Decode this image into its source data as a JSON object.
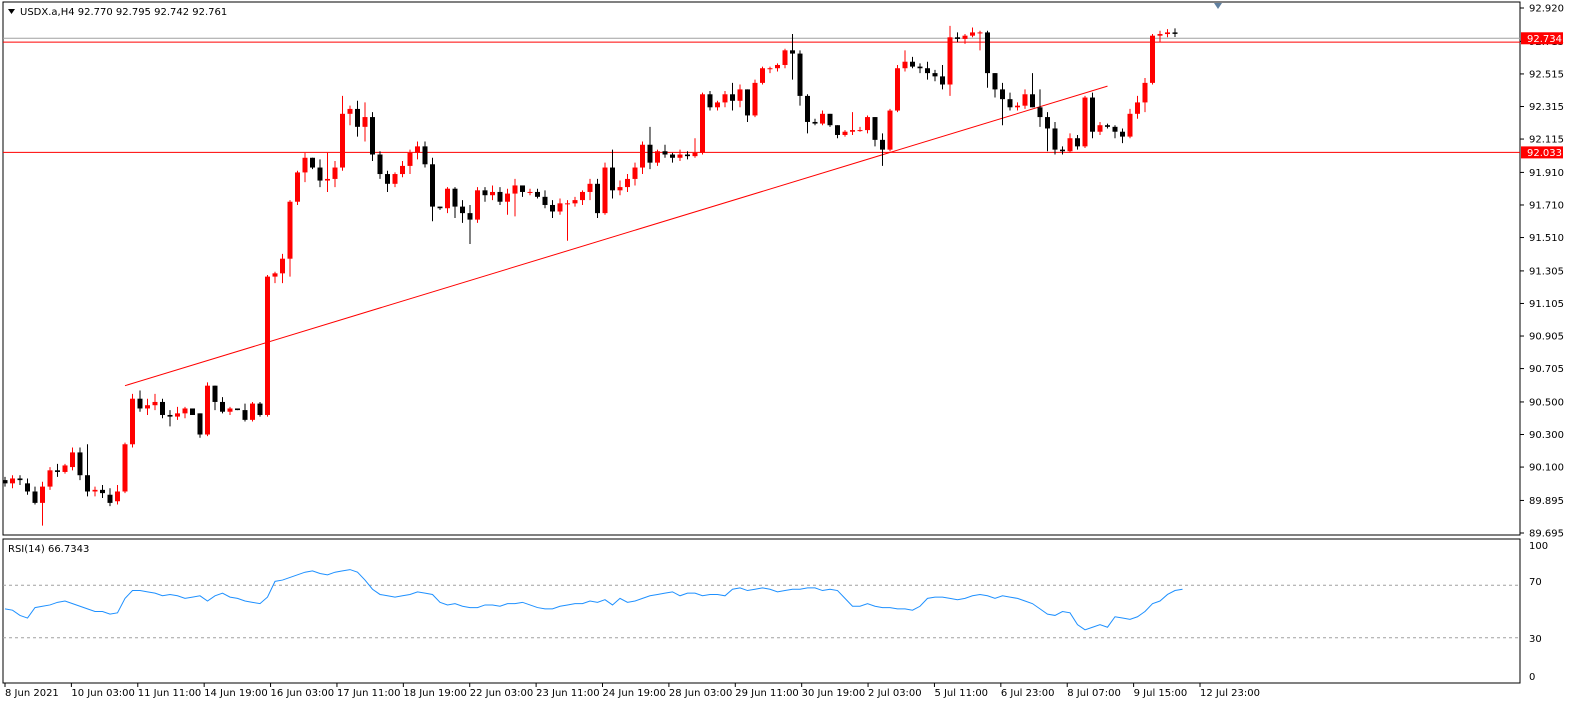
{
  "colors": {
    "background": "#ffffff",
    "frame": "#000000",
    "bull_candle": "#ff0000",
    "bear_candle": "#000000",
    "level_line": "#ff0000",
    "rsi_line": "#1e90ff",
    "rsi_levels": "#a0a0a0",
    "price_tag_bg": "#ff0000",
    "price_tag_text": "#ffffff"
  },
  "icons": {
    "menu": "triangle-down-icon",
    "marker": "triangle-down-icon"
  },
  "header": {
    "symbol_line": "USDX.a,H4  92.770 92.795 92.742 92.761"
  },
  "price_tags": {
    "current": "92.734",
    "resistance": "92.033",
    "current_value": 92.734,
    "resistance_value": 92.033
  },
  "rsi_panel": {
    "title": "RSI(14) 66.7343",
    "max_label": "100",
    "min_label": "0",
    "level_high_label": "70",
    "level_low_label": "30",
    "level_high": 70,
    "level_low": 30,
    "values": [
      52,
      51,
      47,
      45,
      53,
      54,
      55,
      57,
      58,
      56,
      54,
      52,
      50,
      50,
      48,
      49,
      60,
      66,
      66,
      65,
      64,
      62,
      63,
      62,
      60,
      61,
      62,
      58,
      62,
      64,
      61,
      60,
      58,
      57,
      56,
      61,
      73,
      74,
      76,
      78,
      80,
      81,
      79,
      78,
      80,
      81,
      82,
      80,
      74,
      67,
      63,
      62,
      61,
      62,
      63,
      65,
      64,
      63,
      57,
      55,
      56,
      54,
      53,
      53,
      55,
      55,
      54,
      56,
      56,
      57,
      55,
      53,
      52,
      52,
      54,
      55,
      56,
      56,
      58,
      57,
      59,
      55,
      60,
      57,
      58,
      60,
      62,
      63,
      64,
      65,
      62,
      64,
      64,
      62,
      63,
      63,
      62,
      67,
      68,
      66,
      67,
      68,
      67,
      65,
      66,
      67,
      67,
      68,
      68,
      66,
      67,
      66,
      60,
      54,
      54,
      56,
      54,
      53,
      53,
      52,
      52,
      51,
      54,
      60,
      61,
      61,
      60,
      59,
      60,
      62,
      63,
      62,
      60,
      62,
      61,
      60,
      58,
      56,
      52,
      48,
      47,
      50,
      49,
      40,
      36,
      38,
      40,
      38,
      46,
      45,
      44,
      46,
      50,
      56,
      58,
      63,
      66,
      67
    ]
  },
  "chart_data": {
    "type": "candlestick",
    "symbol": "USDX.a",
    "timeframe": "H4",
    "last_ohlc": {
      "open": 92.77,
      "high": 92.795,
      "low": 92.742,
      "close": 92.761
    },
    "ylim": [
      89.695,
      93.0
    ],
    "y_ticks": [
      "92.920",
      "92.715",
      "92.515",
      "92.315",
      "92.115",
      "91.910",
      "91.710",
      "91.510",
      "91.305",
      "91.105",
      "90.905",
      "90.705",
      "90.500",
      "90.300",
      "90.100",
      "89.895",
      "89.695"
    ],
    "x_ticks": [
      "8 Jun 2021",
      "10 Jun 03:00",
      "11 Jun 11:00",
      "14 Jun 19:00",
      "16 Jun 03:00",
      "17 Jun 11:00",
      "18 Jun 19:00",
      "22 Jun 03:00",
      "23 Jun 11:00",
      "24 Jun 19:00",
      "28 Jun 03:00",
      "29 Jun 11:00",
      "30 Jun 19:00",
      "2 Jul 03:00",
      "5 Jul 11:00",
      "6 Jul 23:00",
      "8 Jul 07:00",
      "9 Jul 15:00",
      "12 Jul 23:00"
    ],
    "candles": [
      [
        90.02,
        90.04,
        89.98,
        90.0
      ],
      [
        90.0,
        90.05,
        89.97,
        90.03
      ],
      [
        90.03,
        90.05,
        89.99,
        90.02
      ],
      [
        90.0,
        90.03,
        89.93,
        89.95
      ],
      [
        89.95,
        89.98,
        89.87,
        89.88
      ],
      [
        89.88,
        90.01,
        89.74,
        89.98
      ],
      [
        89.98,
        90.1,
        89.96,
        90.08
      ],
      [
        90.08,
        90.12,
        90.04,
        90.07
      ],
      [
        90.07,
        90.12,
        90.06,
        90.11
      ],
      [
        90.1,
        90.22,
        90.08,
        90.19
      ],
      [
        90.19,
        90.22,
        90.02,
        90.05
      ],
      [
        90.05,
        90.24,
        89.92,
        89.95
      ],
      [
        89.95,
        89.98,
        89.92,
        89.96
      ],
      [
        89.96,
        89.99,
        89.91,
        89.94
      ],
      [
        89.93,
        89.97,
        89.86,
        89.88
      ],
      [
        89.89,
        89.99,
        89.87,
        89.95
      ],
      [
        89.95,
        90.25,
        89.94,
        90.24
      ],
      [
        90.24,
        90.55,
        90.22,
        90.52
      ],
      [
        90.52,
        90.57,
        90.44,
        90.46
      ],
      [
        90.46,
        90.52,
        90.42,
        90.48
      ],
      [
        90.48,
        90.55,
        90.45,
        90.5
      ],
      [
        90.5,
        90.52,
        90.4,
        90.42
      ],
      [
        90.42,
        90.45,
        90.35,
        90.41
      ],
      [
        90.41,
        90.47,
        90.39,
        90.43
      ],
      [
        90.43,
        90.47,
        90.4,
        90.46
      ],
      [
        90.46,
        90.46,
        90.42,
        90.42
      ],
      [
        90.43,
        90.43,
        90.28,
        90.3
      ],
      [
        90.3,
        90.62,
        90.29,
        90.6
      ],
      [
        90.6,
        90.6,
        90.45,
        90.5
      ],
      [
        90.5,
        90.53,
        90.43,
        90.44
      ],
      [
        90.44,
        90.47,
        90.42,
        90.46
      ],
      [
        90.46,
        90.46,
        90.45,
        90.45
      ],
      [
        90.45,
        90.49,
        90.38,
        90.39
      ],
      [
        90.39,
        90.5,
        90.38,
        90.49
      ],
      [
        90.49,
        90.5,
        90.41,
        90.42
      ],
      [
        90.42,
        91.28,
        90.41,
        91.27
      ],
      [
        91.27,
        91.3,
        91.23,
        91.29
      ],
      [
        91.29,
        91.41,
        91.23,
        91.38
      ],
      [
        91.38,
        91.74,
        91.27,
        91.73
      ],
      [
        91.73,
        91.92,
        91.71,
        91.91
      ],
      [
        91.91,
        92.03,
        91.85,
        92.0
      ],
      [
        92.0,
        92.0,
        91.93,
        91.94
      ],
      [
        91.94,
        91.99,
        91.82,
        91.86
      ],
      [
        91.86,
        92.03,
        91.79,
        91.87
      ],
      [
        91.87,
        91.98,
        91.82,
        91.94
      ],
      [
        91.94,
        92.38,
        91.92,
        92.27
      ],
      [
        92.27,
        92.32,
        92.2,
        92.3
      ],
      [
        92.3,
        92.35,
        92.13,
        92.19
      ],
      [
        92.19,
        92.34,
        92.1,
        92.25
      ],
      [
        92.25,
        92.28,
        91.98,
        92.02
      ],
      [
        92.02,
        92.04,
        91.87,
        91.9
      ],
      [
        91.9,
        91.92,
        91.79,
        91.84
      ],
      [
        91.84,
        91.91,
        91.82,
        91.9
      ],
      [
        91.9,
        91.98,
        91.88,
        91.95
      ],
      [
        91.95,
        92.05,
        91.9,
        92.03
      ],
      [
        92.03,
        92.1,
        91.99,
        92.07
      ],
      [
        92.07,
        92.1,
        91.94,
        91.96
      ],
      [
        91.96,
        92.0,
        91.61,
        91.7
      ],
      [
        91.7,
        91.7,
        91.68,
        91.69
      ],
      [
        91.69,
        91.82,
        91.66,
        91.81
      ],
      [
        91.81,
        91.82,
        91.63,
        91.7
      ],
      [
        91.7,
        91.74,
        91.6,
        91.66
      ],
      [
        91.66,
        91.71,
        91.47,
        91.62
      ],
      [
        91.62,
        91.82,
        91.6,
        91.8
      ],
      [
        91.8,
        91.82,
        91.73,
        91.77
      ],
      [
        91.77,
        91.83,
        91.74,
        91.79
      ],
      [
        91.79,
        91.82,
        91.71,
        91.73
      ],
      [
        91.73,
        91.81,
        91.65,
        91.78
      ],
      [
        91.78,
        91.87,
        91.64,
        91.83
      ],
      [
        91.83,
        91.83,
        91.76,
        91.79
      ],
      [
        91.79,
        91.81,
        91.77,
        91.79
      ],
      [
        91.79,
        91.81,
        91.75,
        91.76
      ],
      [
        91.76,
        91.8,
        91.69,
        91.71
      ],
      [
        91.71,
        91.74,
        91.63,
        91.67
      ],
      [
        91.67,
        91.75,
        91.65,
        91.72
      ],
      [
        91.72,
        91.74,
        91.49,
        91.72
      ],
      [
        91.72,
        91.76,
        91.7,
        91.74
      ],
      [
        91.74,
        91.8,
        91.71,
        91.79
      ],
      [
        91.79,
        91.87,
        91.74,
        91.84
      ],
      [
        91.84,
        91.87,
        91.63,
        91.66
      ],
      [
        91.66,
        91.97,
        91.65,
        91.94
      ],
      [
        91.94,
        92.05,
        91.75,
        91.8
      ],
      [
        91.8,
        91.86,
        91.77,
        91.82
      ],
      [
        91.82,
        91.9,
        91.79,
        91.87
      ],
      [
        91.87,
        91.97,
        91.83,
        91.94
      ],
      [
        91.94,
        92.1,
        91.9,
        92.08
      ],
      [
        92.08,
        92.19,
        91.93,
        91.97
      ],
      [
        91.97,
        92.05,
        91.95,
        92.04
      ],
      [
        92.04,
        92.08,
        92.0,
        92.02
      ],
      [
        92.02,
        92.03,
        91.97,
        92.0
      ],
      [
        92.0,
        92.05,
        91.98,
        92.02
      ],
      [
        92.02,
        92.04,
        91.99,
        92.01
      ],
      [
        92.01,
        92.12,
        92.0,
        92.03
      ],
      [
        92.03,
        92.4,
        92.02,
        92.39
      ],
      [
        92.39,
        92.41,
        92.29,
        92.31
      ],
      [
        92.31,
        92.35,
        92.29,
        92.34
      ],
      [
        92.34,
        92.41,
        92.31,
        92.39
      ],
      [
        92.39,
        92.46,
        92.29,
        92.35
      ],
      [
        92.35,
        92.45,
        92.31,
        92.42
      ],
      [
        92.42,
        92.42,
        92.22,
        92.26
      ],
      [
        92.26,
        92.48,
        92.25,
        92.46
      ],
      [
        92.46,
        92.56,
        92.45,
        92.55
      ],
      [
        92.55,
        92.56,
        92.52,
        92.55
      ],
      [
        92.55,
        92.58,
        92.53,
        92.57
      ],
      [
        92.57,
        92.67,
        92.55,
        92.66
      ],
      [
        92.66,
        92.76,
        92.48,
        92.64
      ],
      [
        92.64,
        92.66,
        92.32,
        92.38
      ],
      [
        92.38,
        92.39,
        92.15,
        92.22
      ],
      [
        92.22,
        92.24,
        92.2,
        92.21
      ],
      [
        92.21,
        92.29,
        92.2,
        92.27
      ],
      [
        92.27,
        92.27,
        92.19,
        92.2
      ],
      [
        92.2,
        92.2,
        92.12,
        92.14
      ],
      [
        92.14,
        92.17,
        92.13,
        92.16
      ],
      [
        92.16,
        92.28,
        92.14,
        92.17
      ],
      [
        92.17,
        92.19,
        92.16,
        92.17
      ],
      [
        92.17,
        92.26,
        92.15,
        92.25
      ],
      [
        92.25,
        92.25,
        92.07,
        92.11
      ],
      [
        92.11,
        92.15,
        91.95,
        92.05
      ],
      [
        92.05,
        92.3,
        92.04,
        92.29
      ],
      [
        92.29,
        92.57,
        92.28,
        92.55
      ],
      [
        92.55,
        92.66,
        92.53,
        92.59
      ],
      [
        92.59,
        92.62,
        92.55,
        92.56
      ],
      [
        92.56,
        92.58,
        92.52,
        92.55
      ],
      [
        92.55,
        92.59,
        92.48,
        92.52
      ],
      [
        92.52,
        92.54,
        92.47,
        92.5
      ],
      [
        92.5,
        92.57,
        92.42,
        92.45
      ],
      [
        92.45,
        92.81,
        92.38,
        92.74
      ],
      [
        92.74,
        92.77,
        92.71,
        92.73
      ],
      [
        92.73,
        92.76,
        92.7,
        92.75
      ],
      [
        92.75,
        92.8,
        92.74,
        92.77
      ],
      [
        92.77,
        92.78,
        92.66,
        92.77
      ],
      [
        92.77,
        92.78,
        92.43,
        92.52
      ],
      [
        92.52,
        92.52,
        92.37,
        92.42
      ],
      [
        92.42,
        92.46,
        92.2,
        92.36
      ],
      [
        92.36,
        92.4,
        92.29,
        92.31
      ],
      [
        92.31,
        92.34,
        92.29,
        92.32
      ],
      [
        92.32,
        92.42,
        92.3,
        92.39
      ],
      [
        92.39,
        92.52,
        92.31,
        92.31
      ],
      [
        92.31,
        92.42,
        92.19,
        92.25
      ],
      [
        92.25,
        92.28,
        92.04,
        92.18
      ],
      [
        92.18,
        92.22,
        92.02,
        92.05
      ],
      [
        92.05,
        92.07,
        92.02,
        92.04
      ],
      [
        92.04,
        92.15,
        92.03,
        92.12
      ],
      [
        92.12,
        92.14,
        92.05,
        92.07
      ],
      [
        92.07,
        92.38,
        92.06,
        92.37
      ],
      [
        92.37,
        92.4,
        92.12,
        92.16
      ],
      [
        92.16,
        92.22,
        92.14,
        92.2
      ],
      [
        92.2,
        92.21,
        92.18,
        92.19
      ],
      [
        92.19,
        92.2,
        92.12,
        92.16
      ],
      [
        92.16,
        92.18,
        92.09,
        92.13
      ],
      [
        92.13,
        92.3,
        92.12,
        92.27
      ],
      [
        92.27,
        92.38,
        92.24,
        92.34
      ],
      [
        92.34,
        92.49,
        92.28,
        92.46
      ],
      [
        92.46,
        92.76,
        92.45,
        92.75
      ],
      [
        92.75,
        92.78,
        92.71,
        92.76
      ],
      [
        92.76,
        92.79,
        92.74,
        92.77
      ],
      [
        92.77,
        92.795,
        92.742,
        92.761
      ]
    ],
    "horizontal_levels": [
      {
        "price": 92.734,
        "label": "92.734"
      },
      {
        "price": 92.71
      },
      {
        "price": 92.033,
        "label": "92.033"
      }
    ],
    "trend_line": {
      "from": {
        "bar": 16,
        "price": 90.6
      },
      "to": {
        "bar": 147,
        "price": 92.44
      }
    }
  }
}
